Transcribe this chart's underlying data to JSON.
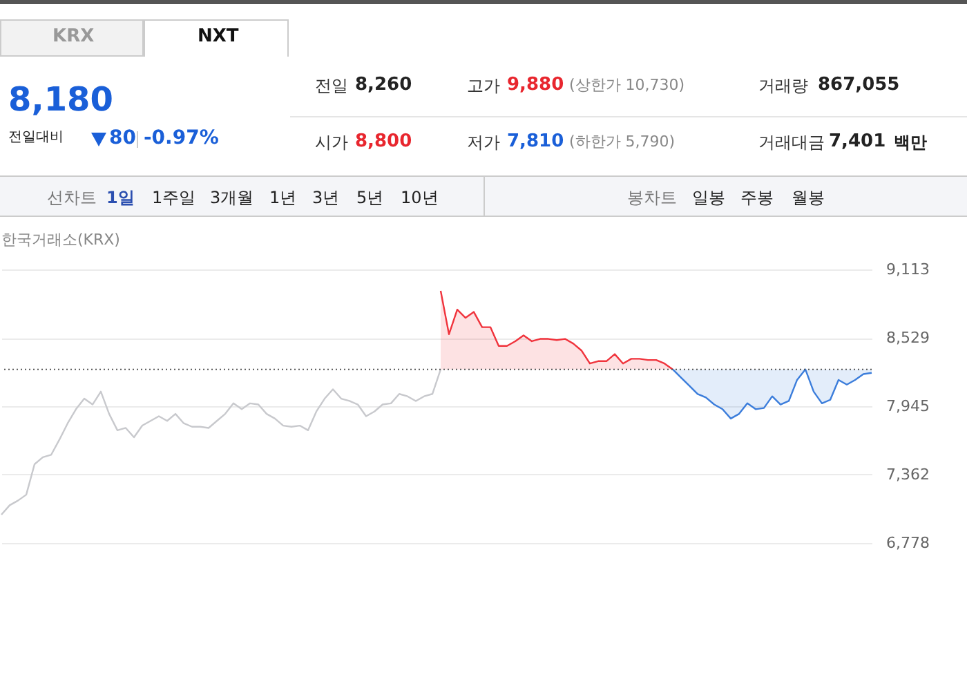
{
  "chart_data": [
    {
      "type": "other",
      "annotations": [
        "KRX",
        "NXT",
        "8,180",
        "전일대비",
        "80",
        "-0.97%",
        "전일",
        "8,260",
        "고가",
        "9,880",
        "(상한가 10,730)",
        "거래량",
        "867,055",
        "시가",
        "8,800",
        "저가",
        "7,810",
        "(하한가 5,790)",
        "거래대금",
        "7,401",
        "백만",
        "선차트",
        "1일",
        "1주일",
        "3개월",
        "1년",
        "3년",
        "5년",
        "10년",
        "봉차트",
        "일봉",
        "주봉",
        "월봉"
      ]
    },
    {
      "type": "line",
      "title": "한국거래소(KRX)",
      "categories": [
        null,
        null,
        null,
        null,
        null,
        null,
        null,
        null,
        null,
        null,
        null,
        null,
        null,
        null,
        null,
        null,
        null,
        null,
        null,
        null,
        null,
        null,
        null,
        null,
        null,
        null,
        null,
        null,
        null,
        null,
        null,
        null,
        null,
        null,
        null,
        null,
        null,
        null,
        null,
        null,
        null,
        null,
        null,
        null,
        null,
        null,
        null,
        null,
        null,
        null,
        null,
        null,
        null,
        null,
        null,
        null,
        null,
        null,
        null,
        null,
        null,
        null,
        null,
        null,
        null,
        null,
        null,
        null,
        null,
        null,
        null,
        null,
        null,
        null,
        null,
        null,
        null,
        null,
        null,
        null,
        null,
        null,
        null,
        null,
        null,
        null,
        null,
        null,
        null,
        null,
        null,
        null,
        null,
        null,
        null,
        null,
        null,
        null,
        null,
        null,
        null,
        null,
        null,
        null,
        null,
        null
      ],
      "series": [
        {
          "color": "#c8c9cd",
          "values": [
            7020,
            7100,
            7140,
            7190,
            7450,
            7510,
            7530,
            7660,
            7800,
            7920,
            8010,
            7960,
            8070,
            7880,
            7740,
            7760,
            7680,
            7780,
            7820,
            7860,
            7820,
            7880,
            7800,
            7770,
            7770,
            7760,
            7820,
            7880,
            7970,
            7920,
            7970,
            7960,
            7880,
            7840,
            7780,
            7770,
            7780,
            7740,
            7900,
            8010,
            8090,
            8010,
            7990,
            7960,
            7860,
            7900,
            7960,
            7970,
            8050,
            8030,
            7990,
            8030,
            8050,
            8260,
            null,
            null,
            null,
            null,
            null,
            null,
            null,
            null,
            null,
            null,
            null,
            null,
            null,
            null,
            null,
            null,
            null,
            null,
            null,
            null,
            null,
            null,
            null,
            null,
            null,
            null,
            null,
            null,
            null,
            null,
            null,
            null,
            null,
            null,
            null,
            null,
            null,
            null,
            null,
            null,
            null,
            null,
            null,
            null,
            null,
            null,
            null,
            null,
            null,
            null,
            null,
            null
          ]
        },
        {
          "color": "#f0333c",
          "values": [
            null,
            null,
            null,
            null,
            null,
            null,
            null,
            null,
            null,
            null,
            null,
            null,
            null,
            null,
            null,
            null,
            null,
            null,
            null,
            null,
            null,
            null,
            null,
            null,
            null,
            null,
            null,
            null,
            null,
            null,
            null,
            null,
            null,
            null,
            null,
            null,
            null,
            null,
            null,
            null,
            null,
            null,
            null,
            null,
            null,
            null,
            null,
            null,
            null,
            null,
            null,
            null,
            null,
            8930,
            8560,
            8770,
            8700,
            8750,
            8620,
            8620,
            8460,
            8460,
            8500,
            8550,
            8500,
            8520,
            8520,
            8510,
            8520,
            8480,
            8420,
            8310,
            8330,
            8330,
            8390,
            8310,
            8350,
            8350,
            8340,
            8340,
            8310,
            8260,
            null,
            null,
            null,
            null,
            null,
            null,
            null,
            null,
            null,
            null,
            null,
            null,
            null,
            null,
            null,
            null,
            null,
            null,
            null,
            null,
            null,
            null,
            null,
            null
          ],
          "lower": [
            null,
            null,
            null,
            null,
            null,
            null,
            null,
            null,
            null,
            null,
            null,
            null,
            null,
            null,
            null,
            null,
            null,
            null,
            null,
            null,
            null,
            null,
            null,
            null,
            null,
            null,
            null,
            null,
            null,
            null,
            null,
            null,
            null,
            null,
            null,
            null,
            null,
            null,
            null,
            null,
            null,
            null,
            null,
            null,
            null,
            null,
            null,
            null,
            null,
            null,
            null,
            null,
            null,
            8260,
            8260,
            8260,
            8260,
            8260,
            8260,
            8260,
            8260,
            8260,
            8260,
            8260,
            8260,
            8260,
            8260,
            8260,
            8260,
            8260,
            8260,
            8260,
            8260,
            8260,
            8260,
            8260,
            8260,
            8260,
            8260,
            8260,
            8260,
            8260,
            null,
            null,
            null,
            null,
            null,
            null,
            null,
            null,
            null,
            null,
            null,
            null,
            null,
            null,
            null,
            null,
            null,
            null,
            null,
            null,
            null,
            null,
            null,
            null
          ],
          "upper": [
            null,
            null,
            null,
            null,
            null,
            null,
            null,
            null,
            null,
            null,
            null,
            null,
            null,
            null,
            null,
            null,
            null,
            null,
            null,
            null,
            null,
            null,
            null,
            null,
            null,
            null,
            null,
            null,
            null,
            null,
            null,
            null,
            null,
            null,
            null,
            null,
            null,
            null,
            null,
            null,
            null,
            null,
            null,
            null,
            null,
            null,
            null,
            null,
            null,
            null,
            null,
            null,
            null,
            8930,
            8560,
            8770,
            8700,
            8750,
            8620,
            8620,
            8460,
            8460,
            8500,
            8550,
            8500,
            8520,
            8520,
            8510,
            8520,
            8480,
            8420,
            8310,
            8330,
            8330,
            8390,
            8310,
            8350,
            8350,
            8340,
            8340,
            8310,
            8260,
            null,
            null,
            null,
            null,
            null,
            null,
            null,
            null,
            null,
            null,
            null,
            null,
            null,
            null,
            null,
            null,
            null,
            null,
            null,
            null,
            null,
            null,
            null,
            null
          ]
        },
        {
          "color": "#3b7ddb",
          "values": [
            null,
            null,
            null,
            null,
            null,
            null,
            null,
            null,
            null,
            null,
            null,
            null,
            null,
            null,
            null,
            null,
            null,
            null,
            null,
            null,
            null,
            null,
            null,
            null,
            null,
            null,
            null,
            null,
            null,
            null,
            null,
            null,
            null,
            null,
            null,
            null,
            null,
            null,
            null,
            null,
            null,
            null,
            null,
            null,
            null,
            null,
            null,
            null,
            null,
            null,
            null,
            null,
            null,
            null,
            null,
            null,
            null,
            null,
            null,
            null,
            null,
            null,
            null,
            null,
            null,
            null,
            null,
            null,
            null,
            null,
            null,
            null,
            null,
            null,
            null,
            null,
            null,
            null,
            null,
            null,
            null,
            8260,
            8190,
            8120,
            8050,
            8020,
            7960,
            7920,
            7840,
            7880,
            7970,
            7920,
            7930,
            8030,
            7960,
            7990,
            8170,
            8260,
            8070,
            7970,
            8000,
            8170,
            8130,
            8170,
            8220,
            8230
          ],
          "lower": [
            null,
            null,
            null,
            null,
            null,
            null,
            null,
            null,
            null,
            null,
            null,
            null,
            null,
            null,
            null,
            null,
            null,
            null,
            null,
            null,
            null,
            null,
            null,
            null,
            null,
            null,
            null,
            null,
            null,
            null,
            null,
            null,
            null,
            null,
            null,
            null,
            null,
            null,
            null,
            null,
            null,
            null,
            null,
            null,
            null,
            null,
            null,
            null,
            null,
            null,
            null,
            null,
            null,
            null,
            null,
            null,
            null,
            null,
            null,
            null,
            null,
            null,
            null,
            null,
            null,
            null,
            null,
            null,
            null,
            null,
            null,
            null,
            null,
            null,
            null,
            null,
            null,
            null,
            null,
            null,
            null,
            8260,
            8190,
            8120,
            8050,
            8020,
            7960,
            7920,
            7840,
            7880,
            7970,
            7920,
            7930,
            8030,
            7960,
            7990,
            8170,
            8260,
            8070,
            7970,
            8000,
            8170,
            8130,
            8170,
            8220,
            8230
          ],
          "upper": [
            null,
            null,
            null,
            null,
            null,
            null,
            null,
            null,
            null,
            null,
            null,
            null,
            null,
            null,
            null,
            null,
            null,
            null,
            null,
            null,
            null,
            null,
            null,
            null,
            null,
            null,
            null,
            null,
            null,
            null,
            null,
            null,
            null,
            null,
            null,
            null,
            null,
            null,
            null,
            null,
            null,
            null,
            null,
            null,
            null,
            null,
            null,
            null,
            null,
            null,
            null,
            null,
            null,
            null,
            null,
            null,
            null,
            null,
            null,
            null,
            null,
            null,
            null,
            null,
            null,
            null,
            null,
            null,
            null,
            null,
            null,
            null,
            null,
            null,
            null,
            null,
            null,
            null,
            null,
            null,
            null,
            8260,
            8260,
            8260,
            8260,
            8260,
            8260,
            8260,
            8260,
            8260,
            8260,
            8260,
            8260,
            8260,
            8260,
            8260,
            8260,
            8260,
            8260,
            8260,
            8260,
            8260,
            8260,
            8260,
            8260,
            8260
          ]
        }
      ],
      "ylim": [
        6778,
        9113
      ],
      "yticks": [
        {
          "value": 6778,
          "label": "6,778"
        },
        {
          "value": 7362,
          "label": "7,362"
        },
        {
          "value": 7945,
          "label": "7,945"
        },
        {
          "value": 8529,
          "label": "8,529"
        },
        {
          "value": 9113,
          "label": "9,113"
        }
      ],
      "grid": "y",
      "tick_labels": "y",
      "ref_lines": [
        {
          "axis": "y",
          "value": 8260,
          "color": "#555555",
          "line_style": "dotted"
        }
      ]
    }
  ]
}
